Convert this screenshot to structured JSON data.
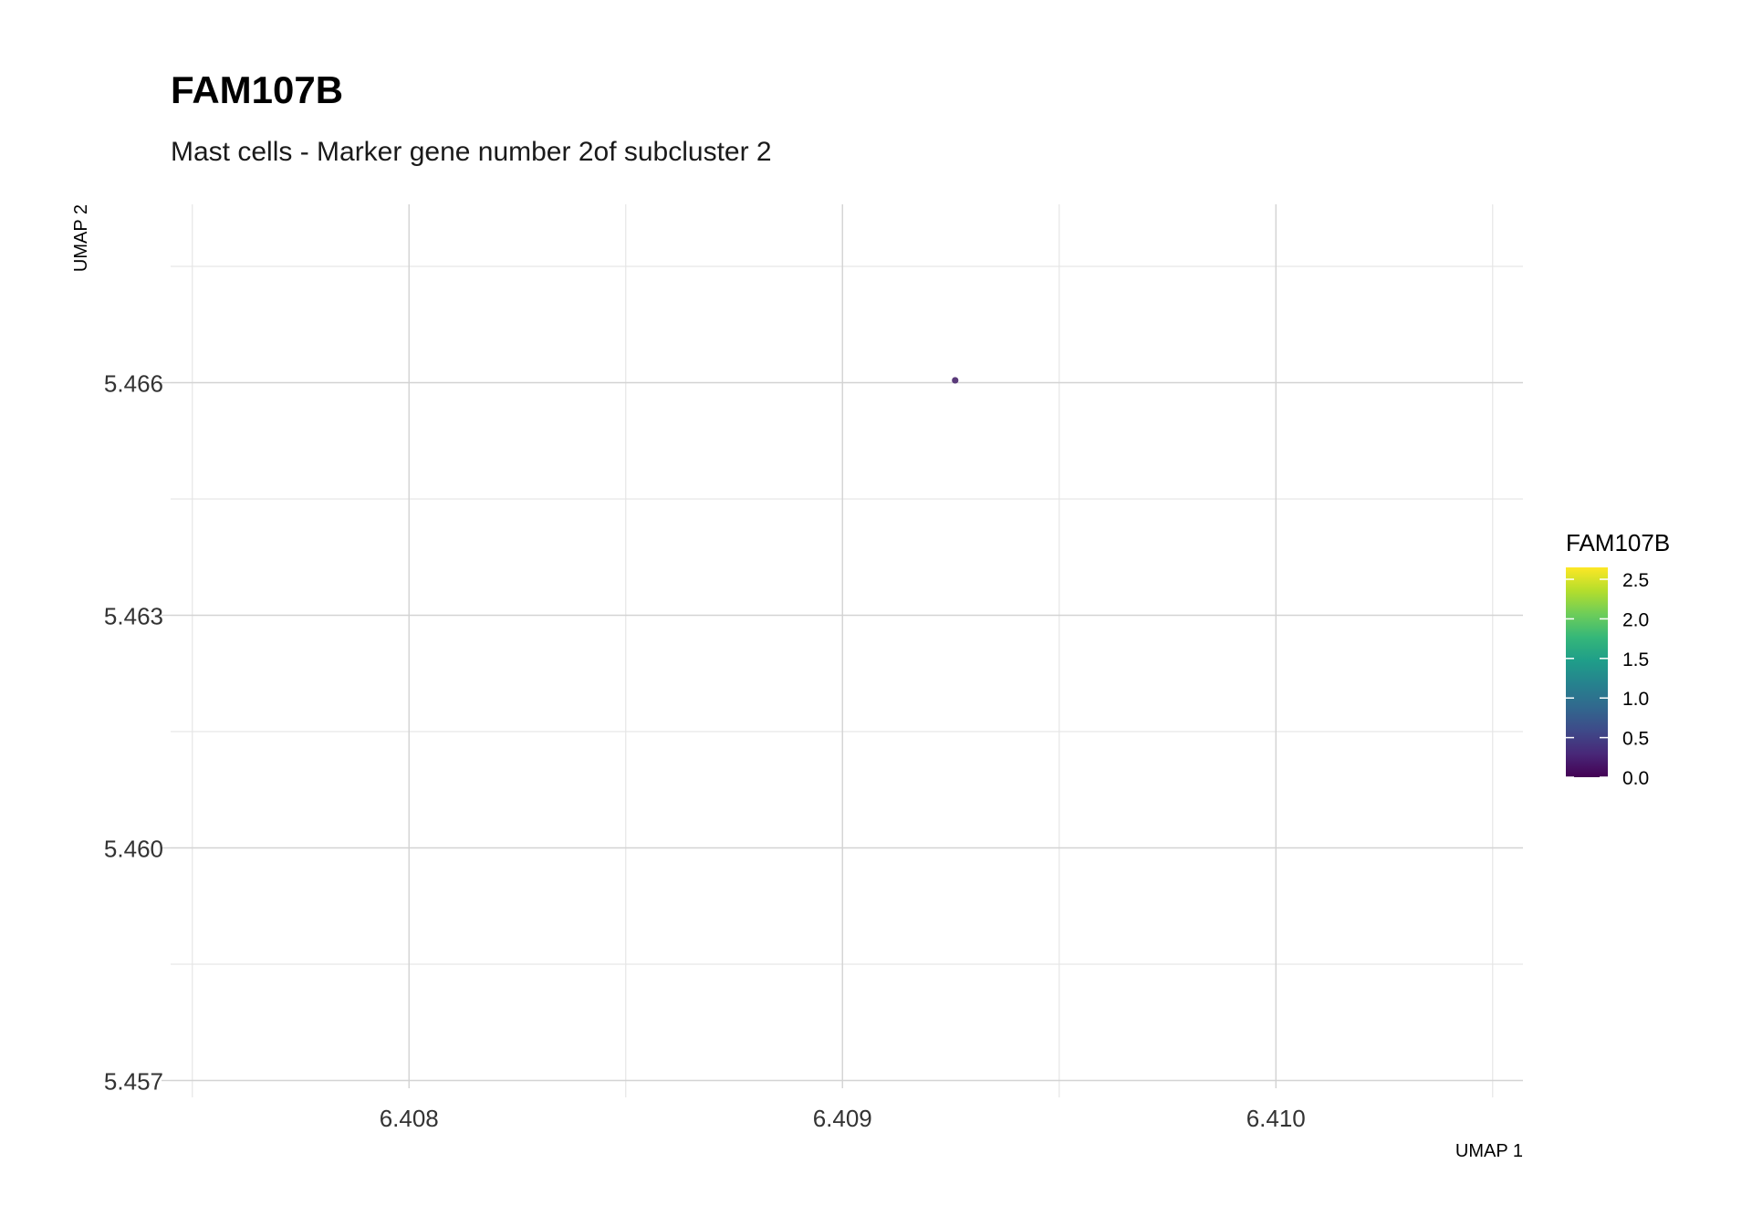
{
  "chart_data": {
    "type": "scatter",
    "title": "FAM107B",
    "subtitle": "Mast cells - Marker gene number 2of subcluster 2",
    "xlabel": "UMAP 1",
    "ylabel": "UMAP 2",
    "xlim": [
      6.40745,
      6.41057
    ],
    "ylim": [
      5.4569,
      5.4683
    ],
    "x_ticks": [
      6.408,
      6.409,
      6.41
    ],
    "x_tick_labels": [
      "6.408",
      "6.409",
      "6.410"
    ],
    "y_ticks": [
      5.457,
      5.46,
      5.463,
      5.466
    ],
    "y_tick_labels": [
      "5.457",
      "5.460",
      "5.463",
      "5.466"
    ],
    "grid": true,
    "points": [
      {
        "x": 6.40926,
        "y": 5.46603,
        "value": 0.0
      }
    ],
    "legend": {
      "title": "FAM107B",
      "placement": "right",
      "type": "colorbar",
      "range": [
        0.0,
        2.65
      ],
      "ticks": [
        0.0,
        0.5,
        1.0,
        1.5,
        2.0,
        2.5
      ],
      "tick_labels": [
        "0.0",
        "0.5",
        "1.0",
        "1.5",
        "2.0",
        "2.5"
      ],
      "colors": [
        "#440154",
        "#482878",
        "#3e4a89",
        "#31688e",
        "#26828e",
        "#1f9e89",
        "#35b779",
        "#6dcd59",
        "#b4de2c",
        "#fde725"
      ]
    },
    "point_color": "#5a3a7a"
  }
}
